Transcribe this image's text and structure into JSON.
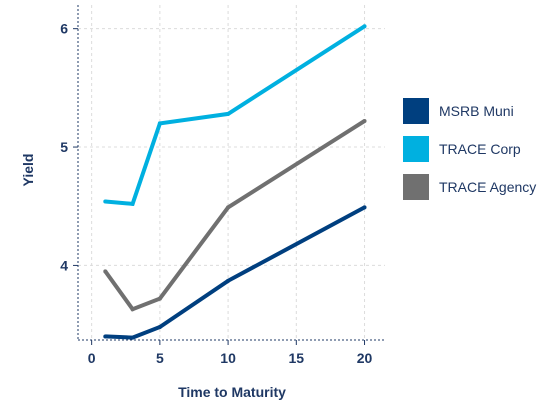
{
  "chart_data": {
    "type": "line",
    "title": "",
    "xlabel": "Time to Maturity",
    "ylabel": "Yield",
    "xlim": [
      -1,
      21.5
    ],
    "ylim": [
      3.37,
      6.2
    ],
    "xticks": [
      0,
      5,
      10,
      15,
      20
    ],
    "yticks": [
      4,
      5,
      6
    ],
    "grid": true,
    "legend_position": "right",
    "series": [
      {
        "name": "MSRB Muni",
        "color": "#003f7f",
        "x": [
          1,
          3,
          5,
          10,
          20
        ],
        "y": [
          3.4,
          3.39,
          3.48,
          3.87,
          4.49
        ]
      },
      {
        "name": "TRACE Corp",
        "color": "#00b0e0",
        "x": [
          1,
          3,
          5,
          10,
          20
        ],
        "y": [
          4.54,
          4.52,
          5.2,
          5.28,
          6.02
        ]
      },
      {
        "name": "TRACE Agency",
        "color": "#707070",
        "x": [
          1,
          3,
          5,
          10,
          20
        ],
        "y": [
          3.95,
          3.63,
          3.72,
          4.49,
          5.22
        ]
      }
    ]
  }
}
